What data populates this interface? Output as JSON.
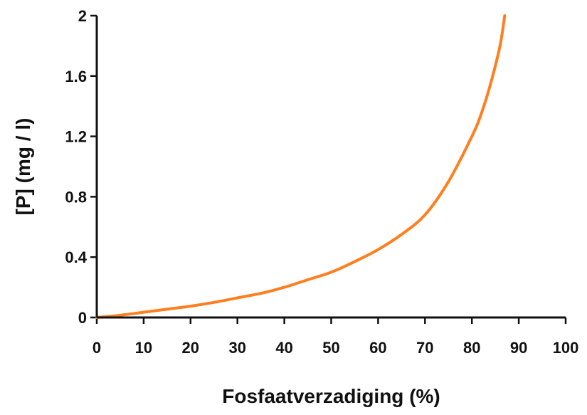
{
  "chart_data": {
    "type": "line",
    "title": "",
    "xlabel": "Fosfaatverzadiging (%)",
    "ylabel": "[P] (mg / l)",
    "xlim": [
      0,
      100
    ],
    "ylim": [
      0,
      2
    ],
    "xticks": [
      0,
      10,
      20,
      30,
      40,
      50,
      60,
      70,
      80,
      90,
      100
    ],
    "yticks": [
      0,
      0.4,
      0.8,
      1.2,
      1.6,
      2
    ],
    "ytick_labels": [
      "0",
      "0.4",
      "0.8",
      "1.2",
      "1.6",
      "2"
    ],
    "grid": false,
    "legend": "none",
    "series": [
      {
        "color": "#ff7f1f",
        "x": [
          0,
          5,
          10,
          15,
          20,
          25,
          30,
          35,
          40,
          45,
          50,
          55,
          60,
          65,
          70,
          75,
          80,
          82,
          84,
          86,
          87
        ],
        "y": [
          0,
          0.015,
          0.035,
          0.055,
          0.075,
          0.1,
          0.13,
          0.16,
          0.2,
          0.25,
          0.3,
          0.37,
          0.45,
          0.55,
          0.68,
          0.9,
          1.2,
          1.35,
          1.55,
          1.8,
          2.0
        ]
      }
    ]
  }
}
